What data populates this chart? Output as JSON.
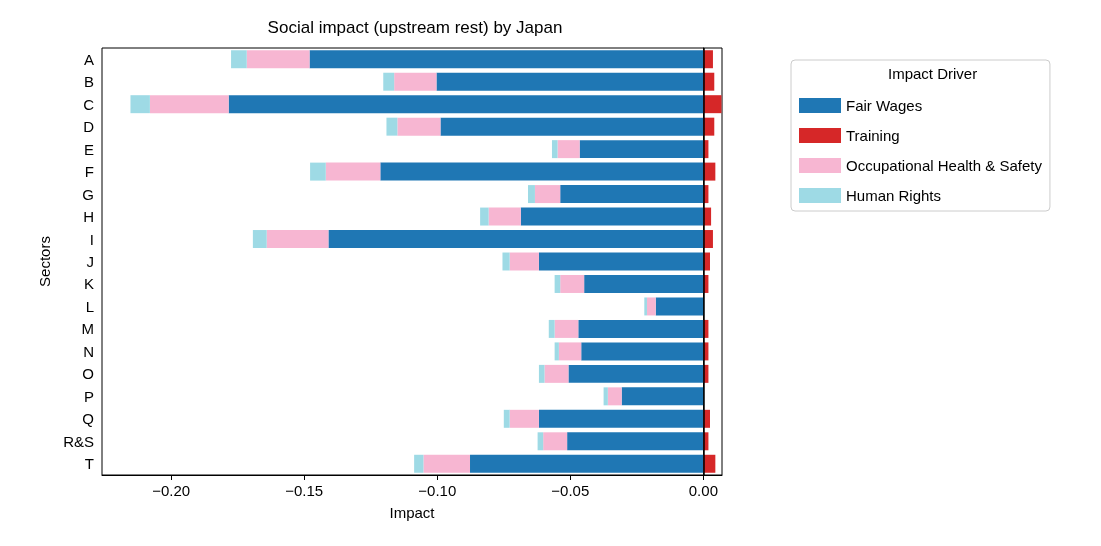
{
  "chart_data": {
    "type": "bar",
    "orientation": "horizontal",
    "stacked": true,
    "title": "Social impact (upstream rest) by Japan",
    "xlabel": "Impact",
    "ylabel": "Sectors",
    "legend_title": "Impact Driver",
    "legend": "top right",
    "grid": false,
    "categories": [
      "A",
      "B",
      "C",
      "D",
      "E",
      "F",
      "G",
      "H",
      "I",
      "J",
      "K",
      "L",
      "M",
      "N",
      "O",
      "P",
      "Q",
      "R&S",
      "T"
    ],
    "xlim": [
      -0.226,
      0.007
    ],
    "xticks": [
      {
        "value": -0.2,
        "label": "−0.20"
      },
      {
        "value": -0.15,
        "label": "−0.15"
      },
      {
        "value": -0.1,
        "label": "−0.10"
      },
      {
        "value": -0.05,
        "label": "−0.05"
      },
      {
        "value": 0,
        "label": "0.00"
      }
    ],
    "ref_lines": [
      {
        "axis": "x",
        "value": 0,
        "color": "#000000"
      }
    ],
    "series": [
      {
        "name": "Fair Wages",
        "color": "#1f77b4",
        "values": [
          -0.148,
          -0.1003,
          -0.1784,
          -0.0988,
          -0.0465,
          -0.1214,
          -0.0538,
          -0.0686,
          -0.1409,
          -0.0618,
          -0.0448,
          -0.0179,
          -0.047,
          -0.0459,
          -0.0507,
          -0.0307,
          -0.0618,
          -0.0512,
          -0.0877
        ]
      },
      {
        "name": "Training",
        "color": "#d62728",
        "values": [
          0.0036,
          0.0041,
          0.0068,
          0.0041,
          0.0019,
          0.0045,
          0.0019,
          0.0029,
          0.0036,
          0.0025,
          0.0019,
          0,
          0.0019,
          0.0019,
          0.0019,
          null,
          0.0025,
          0.0019,
          0.0045
        ]
      },
      {
        "name": "Occupational Health & Safety",
        "color": "#f7b6d2",
        "values": [
          -0.0236,
          -0.0159,
          -0.0296,
          -0.0162,
          -0.0083,
          -0.0205,
          -0.0095,
          -0.0121,
          -0.0232,
          -0.011,
          -0.009,
          -0.0033,
          -0.0089,
          -0.0084,
          -0.009,
          -0.0052,
          -0.011,
          -0.009,
          -0.0175
        ]
      },
      {
        "name": "Human Rights",
        "color": "#9edae5",
        "values": [
          -0.0059,
          -0.0041,
          -0.0073,
          -0.0041,
          -0.0021,
          -0.0059,
          -0.0026,
          -0.0032,
          -0.0052,
          -0.0027,
          -0.0021,
          -0.001,
          -0.0022,
          -0.0016,
          -0.0021,
          -0.0016,
          -0.0022,
          -0.0021,
          -0.0035
        ]
      }
    ]
  }
}
